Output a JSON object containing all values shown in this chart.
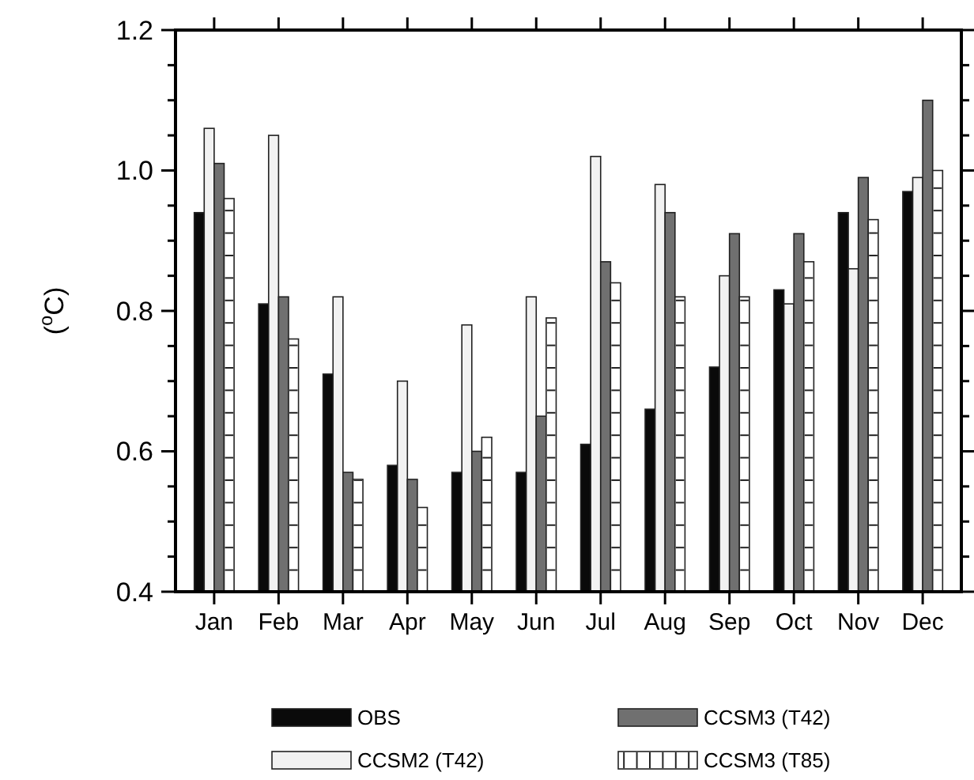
{
  "chart_data": {
    "type": "bar",
    "ylabel": "($^{o}$C)",
    "categories": [
      "Jan",
      "Feb",
      "Mar",
      "Apr",
      "May",
      "Jun",
      "Jul",
      "Aug",
      "Sep",
      "Oct",
      "Nov",
      "Dec"
    ],
    "series": [
      {
        "name": "OBS",
        "color": "#0a0a0a",
        "values": [
          0.94,
          0.81,
          0.71,
          0.58,
          0.57,
          0.57,
          0.61,
          0.66,
          0.72,
          0.83,
          0.94,
          0.97
        ]
      },
      {
        "name": "CCSM2 (T42)",
        "color": "#f2f2f2",
        "values": [
          1.06,
          1.05,
          0.82,
          0.7,
          0.78,
          0.82,
          1.02,
          0.98,
          0.85,
          0.81,
          0.86,
          0.99
        ]
      },
      {
        "name": "CCSM3 (T42)",
        "color": "#707070",
        "values": [
          1.01,
          0.82,
          0.57,
          0.56,
          0.6,
          0.65,
          0.87,
          0.94,
          0.91,
          0.91,
          0.99,
          1.1
        ]
      },
      {
        "name": "CCSM3 (T85)",
        "color": "#ffffff",
        "values": [
          0.96,
          0.76,
          0.56,
          0.52,
          0.62,
          0.79,
          0.84,
          0.82,
          0.82,
          0.87,
          0.93,
          1.0
        ]
      }
    ],
    "ylim": [
      0.4,
      1.2
    ],
    "yticks": [
      0.4,
      0.6,
      0.8,
      {
        "value": 1,
        "label": "1.0"
      },
      1.2
    ],
    "legend": "bottom"
  }
}
